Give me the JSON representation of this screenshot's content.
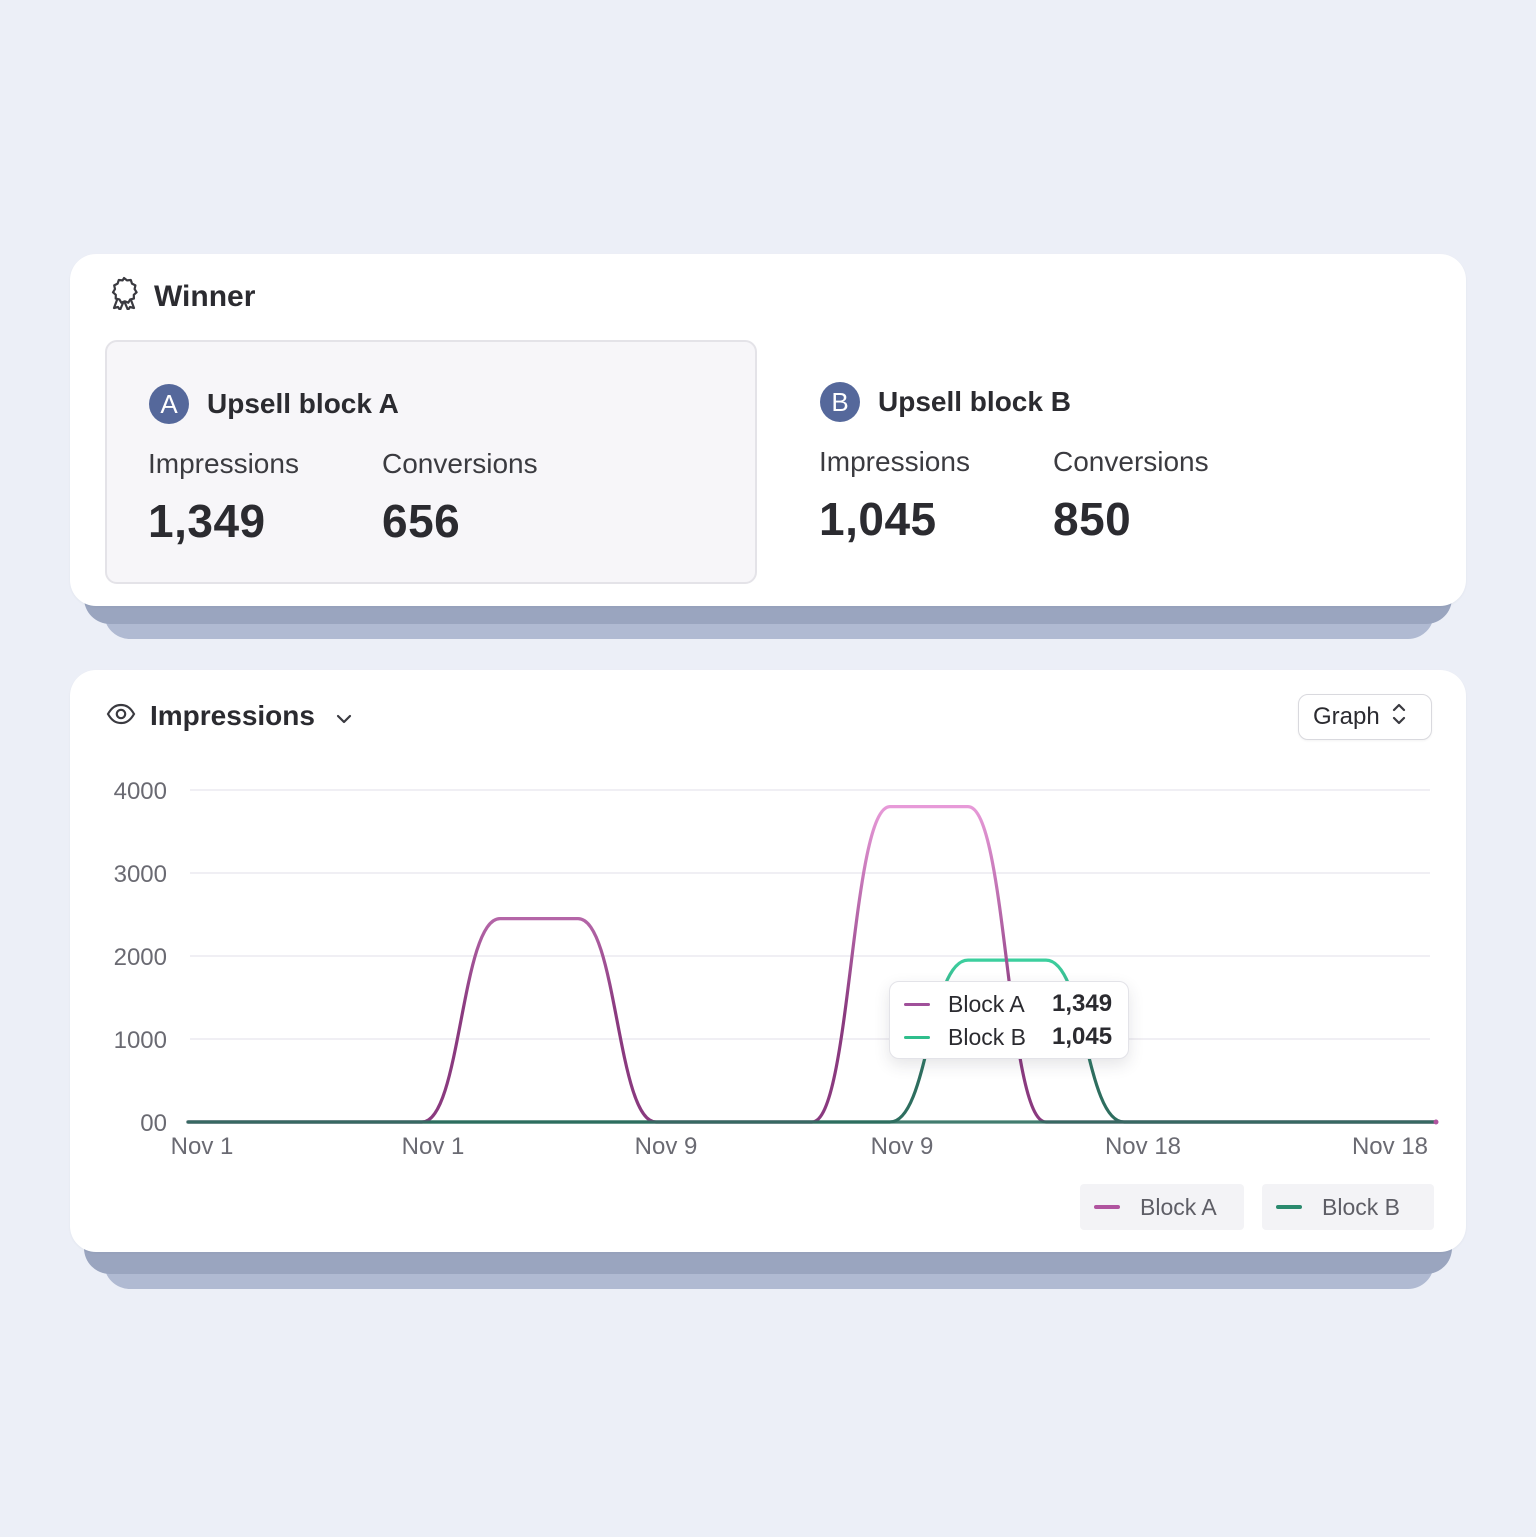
{
  "winner": {
    "title": "Winner",
    "blocks": [
      {
        "badge": "A",
        "name": "Upsell block A",
        "impressions_label": "Impressions",
        "impressions": "1,349",
        "conversions_label": "Conversions",
        "conversions": "656"
      },
      {
        "badge": "B",
        "name": "Upsell block B",
        "impressions_label": "Impressions",
        "impressions": "1,045",
        "conversions_label": "Conversions",
        "conversions": "850"
      }
    ]
  },
  "chart_panel": {
    "metric_label": "Impressions",
    "view_label": "Graph"
  },
  "colors": {
    "block_a": "#8a3a7f",
    "block_a_highlight": "#e79ad8",
    "block_b": "#2e6e5f",
    "block_b_highlight": "#3ccf9e",
    "badge": "#55689b"
  },
  "tooltip": {
    "rows": [
      {
        "label": "Block A",
        "value": "1,349"
      },
      {
        "label": "Block B",
        "value": "1,045"
      }
    ]
  },
  "legend": [
    {
      "label": "Block A"
    },
    {
      "label": "Block B"
    }
  ],
  "chart_data": {
    "type": "line",
    "title": "",
    "xlabel": "",
    "ylabel": "",
    "ylim": [
      0,
      4000
    ],
    "yticks": [
      "00",
      "1000",
      "2000",
      "3000",
      "4000"
    ],
    "xtick_labels": [
      "Nov 1",
      "Nov 1",
      "Nov 9",
      "Nov 9",
      "Nov 18",
      "Nov 18"
    ],
    "x": [
      0,
      1,
      2,
      3,
      4,
      5,
      6,
      7,
      8,
      9,
      10,
      11,
      12,
      13,
      14,
      15,
      16
    ],
    "series": [
      {
        "name": "Block A",
        "values": [
          0,
          0,
          0,
          0,
          2450,
          2450,
          0,
          0,
          0,
          3800,
          3800,
          0,
          0,
          0,
          0,
          0,
          0
        ]
      },
      {
        "name": "Block B",
        "values": [
          0,
          0,
          0,
          0,
          0,
          0,
          0,
          0,
          0,
          0,
          1950,
          1950,
          0,
          0,
          0,
          0,
          0
        ]
      }
    ],
    "grid": true,
    "legend_position": "bottom-right"
  }
}
